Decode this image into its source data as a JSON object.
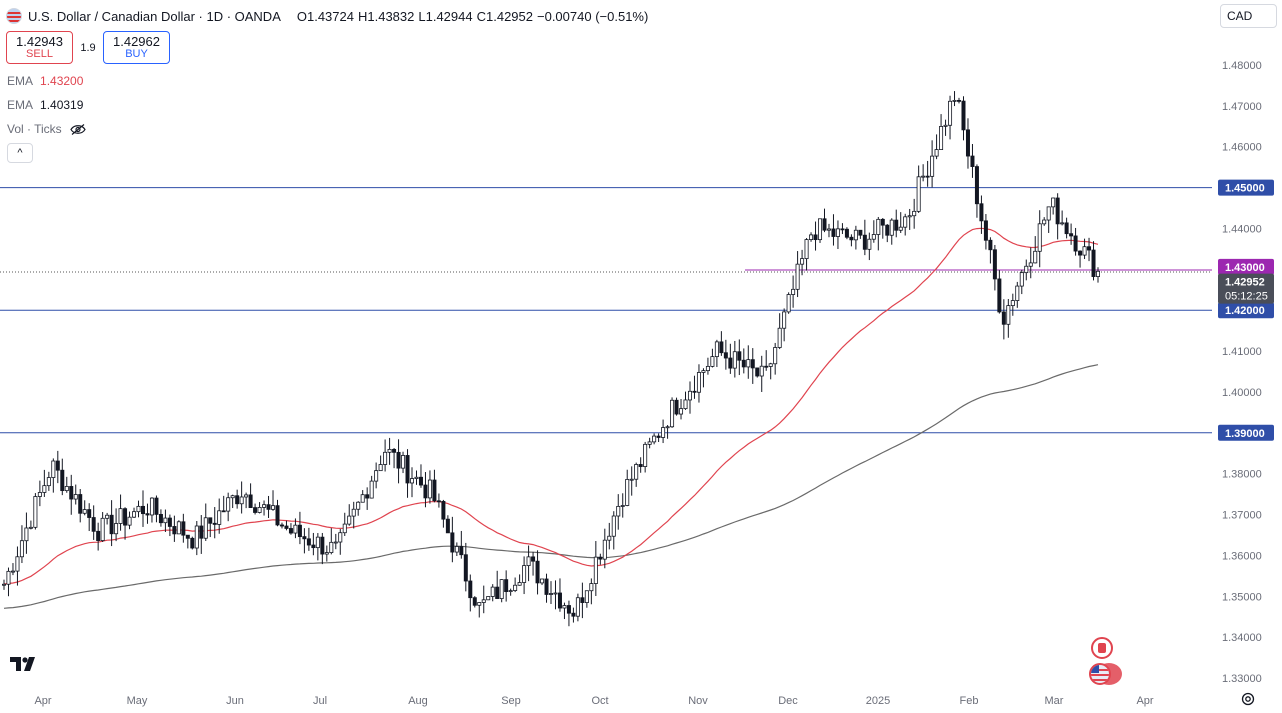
{
  "header": {
    "title": "U.S. Dollar / Canadian Dollar · 1D · OANDA",
    "o_label": "O",
    "o_value": "1.43724",
    "h_label": "H",
    "h_value": "1.43832",
    "l_label": "L",
    "l_value": "1.42944",
    "c_label": "C",
    "c_value": "1.42952",
    "change": "−0.00740 (−0.51%)"
  },
  "trade": {
    "sell_price": "1.42943",
    "sell_label": "SELL",
    "spread": "1.9",
    "buy_price": "1.42962",
    "buy_label": "BUY"
  },
  "indicators": {
    "ema1_label": "EMA",
    "ema1_value": "1.43200",
    "ema2_label": "EMA",
    "ema2_value": "1.40319",
    "vol_label": "Vol · Ticks"
  },
  "currency_button": "CAD",
  "colors": {
    "up": "#ffffff",
    "down": "#131722",
    "ema_fast": "#e0444f",
    "ema_slow": "#6a6a6a",
    "hline": "#2f4ea8",
    "purple": "#9c27b0"
  },
  "icons": [
    "us-flag-icon",
    "eye-off-icon",
    "chevron-up-icon",
    "tradingview-logo-icon",
    "gear-icon",
    "canada-flag-icon",
    "us-flag-icon"
  ],
  "chart_data": {
    "type": "candlestick",
    "title": "U.S. Dollar / Canadian Dollar · 1D · OANDA",
    "x_tick_labels": [
      "Apr",
      "May",
      "Jun",
      "Jul",
      "Aug",
      "Sep",
      "Oct",
      "Nov",
      "Dec",
      "2025",
      "Feb",
      "Mar",
      "Apr"
    ],
    "y_tick_labels": [
      "1.48000",
      "1.47000",
      "1.46000",
      "1.44000",
      "1.41000",
      "1.40000",
      "1.38000",
      "1.37000",
      "1.36000",
      "1.35000",
      "1.34000",
      "1.33000"
    ],
    "ylim": [
      1.327,
      1.4845
    ],
    "grid": false,
    "horizontal_levels": [
      {
        "value": 1.45,
        "label": "1.45000"
      },
      {
        "value": 1.42,
        "label": "1.42000"
      },
      {
        "value": 1.39,
        "label": "1.39000"
      }
    ],
    "highlight_level": {
      "value": 1.43,
      "label": "1.43000"
    },
    "last_price": {
      "value": 1.42952,
      "label": "1.42952",
      "countdown": "05:12:25"
    },
    "monthly_path": [
      {
        "month": "Apr",
        "value": 1.353
      },
      {
        "month": "Apr",
        "value": 1.382
      },
      {
        "month": "May",
        "value": 1.366
      },
      {
        "month": "May",
        "value": 1.372
      },
      {
        "month": "Jun",
        "value": 1.364
      },
      {
        "month": "Jun",
        "value": 1.376
      },
      {
        "month": "Jul",
        "value": 1.366
      },
      {
        "month": "Jul",
        "value": 1.361
      },
      {
        "month": "Aug",
        "value": 1.386
      },
      {
        "month": "Aug",
        "value": 1.375
      },
      {
        "month": "Sep",
        "value": 1.347
      },
      {
        "month": "Sep",
        "value": 1.358
      },
      {
        "month": "Oct",
        "value": 1.346
      },
      {
        "month": "Oct",
        "value": 1.375
      },
      {
        "month": "Nov",
        "value": 1.395
      },
      {
        "month": "Nov",
        "value": 1.41
      },
      {
        "month": "Dec",
        "value": 1.403
      },
      {
        "month": "Dec",
        "value": 1.44
      },
      {
        "month": "2025",
        "value": 1.437
      },
      {
        "month": "2025",
        "value": 1.443
      },
      {
        "month": "Feb",
        "value": 1.473
      },
      {
        "month": "Feb",
        "value": 1.418
      },
      {
        "month": "Mar",
        "value": 1.446
      },
      {
        "month": "Mar",
        "value": 1.4295
      }
    ],
    "series": [
      {
        "name": "EMA",
        "kind": "ema_fast",
        "last": 1.432
      },
      {
        "name": "EMA",
        "kind": "ema_slow",
        "last": 1.40319
      }
    ]
  }
}
